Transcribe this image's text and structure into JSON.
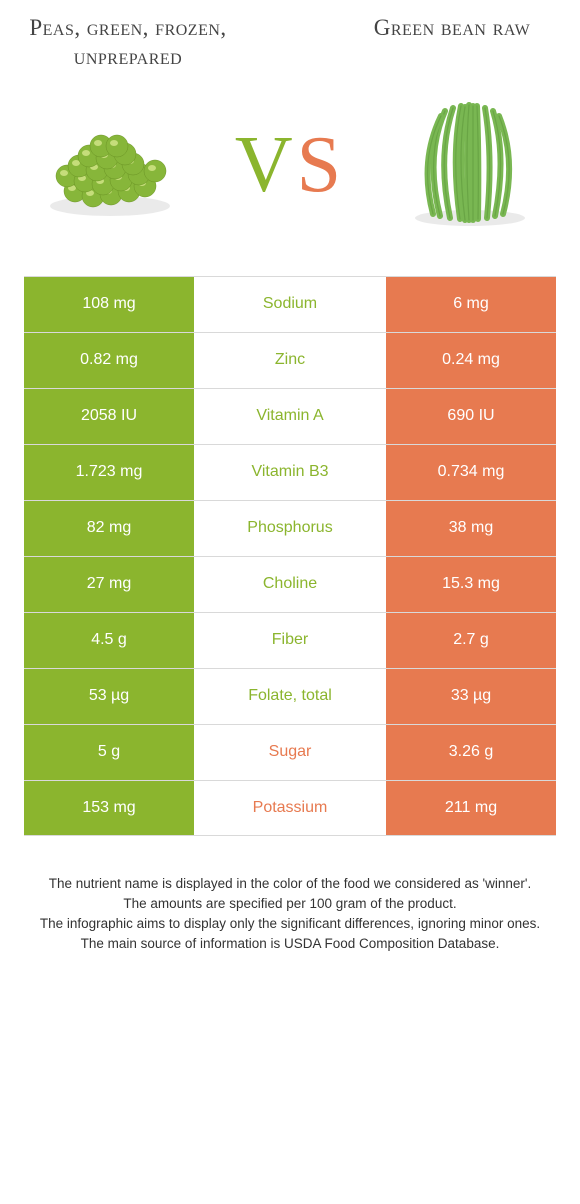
{
  "colors": {
    "green": "#8bb52e",
    "orange": "#e77a50",
    "text": "#333333",
    "row_border": "#d9d9d9",
    "white": "#ffffff",
    "pea_fill": "#87b63a",
    "pea_highlight": "#c5dd7a",
    "bean_fill": "#79b752",
    "bean_dark": "#5a9438"
  },
  "header": {
    "left_title": "Peas, green, frozen, unprepared",
    "right_title": "Green bean raw",
    "vs_v": "V",
    "vs_s": "S"
  },
  "table": {
    "rows": [
      {
        "left": "108 mg",
        "label": "Sodium",
        "right": "6 mg",
        "winner": "left"
      },
      {
        "left": "0.82 mg",
        "label": "Zinc",
        "right": "0.24 mg",
        "winner": "left"
      },
      {
        "left": "2058 IU",
        "label": "Vitamin A",
        "right": "690 IU",
        "winner": "left"
      },
      {
        "left": "1.723 mg",
        "label": "Vitamin B3",
        "right": "0.734 mg",
        "winner": "left"
      },
      {
        "left": "82 mg",
        "label": "Phosphorus",
        "right": "38 mg",
        "winner": "left"
      },
      {
        "left": "27 mg",
        "label": "Choline",
        "right": "15.3 mg",
        "winner": "left"
      },
      {
        "left": "4.5 g",
        "label": "Fiber",
        "right": "2.7 g",
        "winner": "left"
      },
      {
        "left": "53 µg",
        "label": "Folate, total",
        "right": "33 µg",
        "winner": "left"
      },
      {
        "left": "5 g",
        "label": "Sugar",
        "right": "3.26 g",
        "winner": "right"
      },
      {
        "left": "153 mg",
        "label": "Potassium",
        "right": "211 mg",
        "winner": "right"
      }
    ]
  },
  "footer": {
    "line1": "The nutrient name is displayed in the color of the food we considered as 'winner'.",
    "line2": "The amounts are specified per 100 gram of the product.",
    "line3": "The infographic aims to display only the significant differences, ignoring minor ones.",
    "line4": "The main source of information is USDA Food Composition Database."
  }
}
